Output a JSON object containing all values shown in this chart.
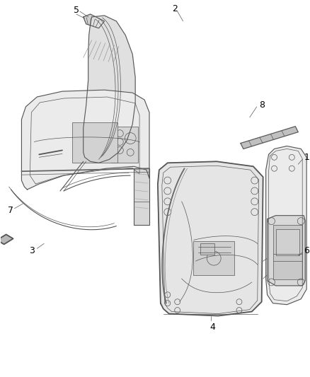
{
  "background_color": "#ffffff",
  "line_color": "#555555",
  "label_color": "#000000",
  "fig_width": 4.38,
  "fig_height": 5.33,
  "dpi": 100
}
